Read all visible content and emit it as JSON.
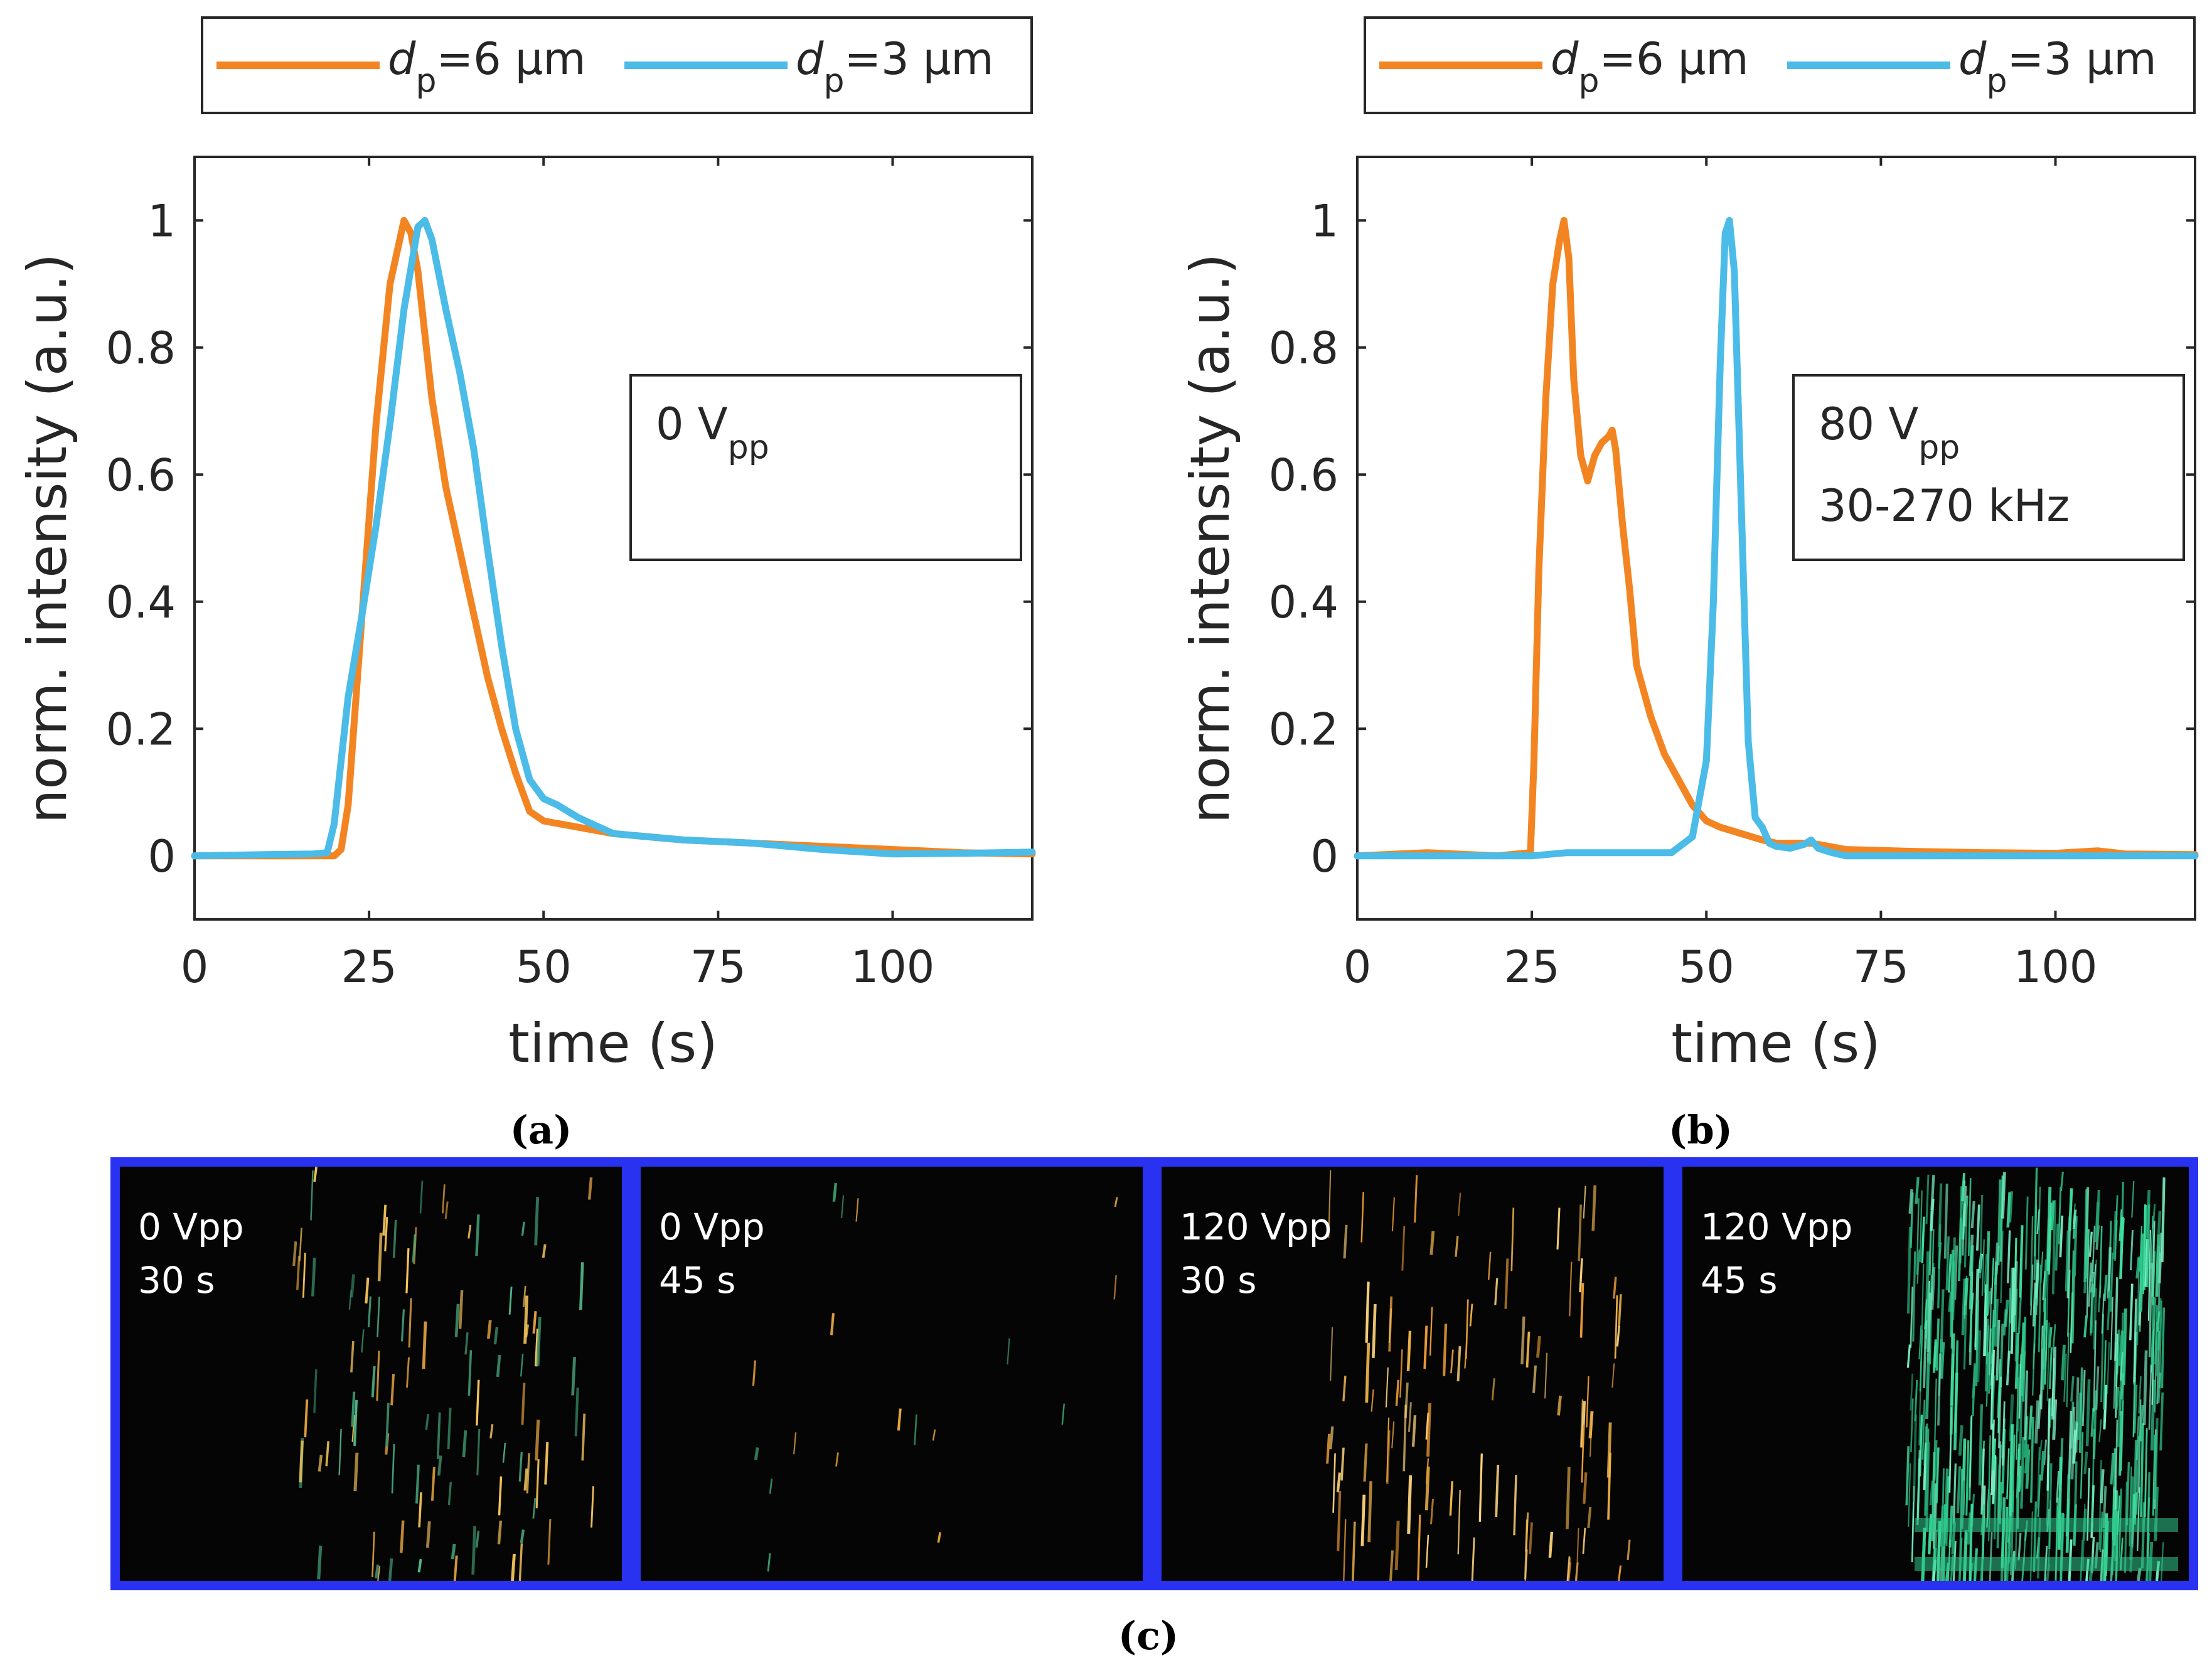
{
  "chart_data": [
    {
      "type": "line",
      "panel_label": "(a)",
      "xlabel": "time (s)",
      "ylabel": "norm. intensity (a.u.)",
      "xlim": [
        0,
        120
      ],
      "ylim": [
        -0.1,
        1.1
      ],
      "xticks": [
        0,
        25,
        50,
        75,
        100
      ],
      "xtick_labels": [
        "0",
        "25",
        "50",
        "75",
        "100"
      ],
      "yticks": [
        0,
        0.2,
        0.4,
        0.6,
        0.8,
        1
      ],
      "ytick_labels": [
        "0",
        "0.2",
        "0.4",
        "0.6",
        "0.8",
        "1"
      ],
      "annotation": {
        "main": "0 V",
        "sub": "pp",
        "line2": ""
      },
      "legend": [
        {
          "italic": "d",
          "sub": "p",
          "rest": "=6 µm"
        },
        {
          "italic": "d",
          "sub": "p",
          "rest": "=3 µm"
        }
      ],
      "series": [
        {
          "name": "dp=6 µm",
          "color": "#f28522",
          "x": [
            0,
            10,
            18,
            20,
            21,
            22,
            24,
            26,
            28,
            30,
            31,
            32,
            34,
            36,
            38,
            40,
            42,
            44,
            46,
            48,
            50,
            55,
            60,
            70,
            80,
            90,
            100,
            110,
            120
          ],
          "y": [
            0,
            0,
            0,
            0,
            0.01,
            0.08,
            0.38,
            0.68,
            0.9,
            1.0,
            0.98,
            0.92,
            0.72,
            0.58,
            0.48,
            0.38,
            0.28,
            0.2,
            0.13,
            0.07,
            0.055,
            0.045,
            0.035,
            0.025,
            0.02,
            0.015,
            0.01,
            0.005,
            0.003
          ]
        },
        {
          "name": "dp=3 µm",
          "color": "#4bbbe8",
          "x": [
            0,
            10,
            17,
            19,
            20,
            22,
            24,
            26,
            28,
            30,
            32,
            33,
            34,
            36,
            38,
            40,
            42,
            44,
            46,
            48,
            50,
            52,
            55,
            60,
            70,
            80,
            90,
            100,
            110,
            120
          ],
          "y": [
            0,
            0.002,
            0.003,
            0.005,
            0.05,
            0.25,
            0.38,
            0.52,
            0.68,
            0.86,
            0.99,
            1.0,
            0.97,
            0.86,
            0.76,
            0.64,
            0.48,
            0.33,
            0.2,
            0.12,
            0.09,
            0.08,
            0.06,
            0.035,
            0.025,
            0.02,
            0.01,
            0.003,
            0.004,
            0.006
          ]
        }
      ]
    },
    {
      "type": "line",
      "panel_label": "(b)",
      "xlabel": "time (s)",
      "ylabel": "norm. intensity (a.u.)",
      "xlim": [
        0,
        120
      ],
      "ylim": [
        -0.1,
        1.1
      ],
      "xticks": [
        0,
        25,
        50,
        75,
        100
      ],
      "xtick_labels": [
        "0",
        "25",
        "50",
        "75",
        "100"
      ],
      "yticks": [
        0,
        0.2,
        0.4,
        0.6,
        0.8,
        1
      ],
      "ytick_labels": [
        "0",
        "0.2",
        "0.4",
        "0.6",
        "0.8",
        "1"
      ],
      "annotation": {
        "main": "80 V",
        "sub": "pp",
        "line2": "30-270 kHz"
      },
      "legend": [
        {
          "italic": "d",
          "sub": "p",
          "rest": "=6 µm"
        },
        {
          "italic": "d",
          "sub": "p",
          "rest": "=3 µm"
        }
      ],
      "series": [
        {
          "name": "dp=6 µm",
          "color": "#f28522",
          "x": [
            0,
            10,
            20,
            24.8,
            25.3,
            26,
            27,
            28,
            29,
            29.6,
            30.3,
            31,
            32,
            33,
            34,
            35,
            36,
            36.5,
            37,
            38,
            39,
            40,
            42,
            44,
            46,
            48,
            50,
            52,
            55,
            58,
            60,
            65,
            70,
            80,
            90,
            100,
            106,
            110,
            120
          ],
          "y": [
            0,
            0.005,
            0,
            0.005,
            0.15,
            0.45,
            0.72,
            0.9,
            0.97,
            1.0,
            0.94,
            0.75,
            0.63,
            0.59,
            0.63,
            0.65,
            0.66,
            0.67,
            0.64,
            0.52,
            0.42,
            0.3,
            0.22,
            0.16,
            0.12,
            0.08,
            0.055,
            0.045,
            0.035,
            0.025,
            0.02,
            0.02,
            0.01,
            0.007,
            0.005,
            0.004,
            0.008,
            0.003,
            0.002
          ]
        },
        {
          "name": "dp=3 µm",
          "color": "#4bbbe8",
          "x": [
            0,
            20,
            25,
            30,
            35,
            40,
            45,
            48,
            50,
            51,
            52,
            52.7,
            53.3,
            54,
            55,
            56,
            57,
            58,
            59,
            60,
            62,
            64,
            65,
            66,
            68,
            70,
            80,
            90,
            100,
            110,
            120
          ],
          "y": [
            0,
            0,
            0,
            0.005,
            0.005,
            0.005,
            0.005,
            0.03,
            0.15,
            0.4,
            0.78,
            0.98,
            1.0,
            0.92,
            0.55,
            0.18,
            0.06,
            0.045,
            0.02,
            0.015,
            0.012,
            0.018,
            0.025,
            0.012,
            0.005,
            0.0,
            0.0,
            0.0,
            0.0,
            0.0,
            0.0
          ]
        }
      ]
    }
  ],
  "photo_strip": {
    "panel_label": "(c)",
    "frame_color": "#2832f0",
    "frames": [
      {
        "voltage": "0 Vpp",
        "time": "30 s"
      },
      {
        "voltage": "0 Vpp",
        "time": "45 s"
      },
      {
        "voltage": "120 Vpp",
        "time": "30 s"
      },
      {
        "voltage": "120 Vpp",
        "time": "45 s"
      }
    ]
  }
}
